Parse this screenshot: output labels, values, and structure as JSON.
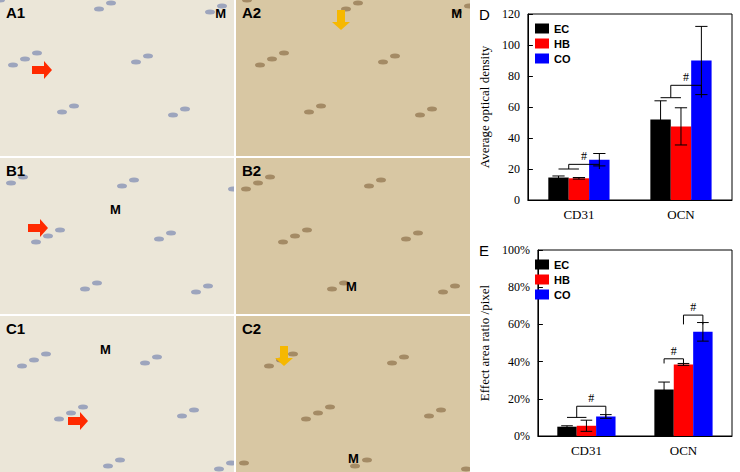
{
  "chart_data": [
    {
      "type": "bar",
      "title": "D",
      "y_label": "Average optical density",
      "categories": [
        "CD31",
        "OCN"
      ],
      "series": [
        {
          "name": "EC",
          "color": "#000000",
          "values": [
            14.5,
            52
          ],
          "errors": [
            1,
            12
          ]
        },
        {
          "name": "HB",
          "color": "#ff0000",
          "values": [
            14,
            47.5
          ],
          "errors": [
            0.5,
            12
          ]
        },
        {
          "name": "CO",
          "color": "#0000ff",
          "values": [
            26,
            90
          ],
          "errors": [
            4,
            22
          ]
        }
      ],
      "ylim": [
        0,
        120
      ],
      "yticks": [
        0,
        20,
        40,
        60,
        80,
        100,
        120
      ],
      "legend": "upper left",
      "grid": false,
      "annotations": [
        {
          "category": "CD31",
          "from": [
            "EC",
            "HB"
          ],
          "to": "CO",
          "y": 20,
          "y_top": 23,
          "label": "#"
        },
        {
          "category": "OCN",
          "from": [
            "EC",
            "HB"
          ],
          "to": "CO",
          "y": 66,
          "y_top": 74,
          "label": "#"
        }
      ]
    },
    {
      "type": "bar",
      "title": "E",
      "y_label": "Effect area ratio /pixel",
      "categories": [
        "CD31",
        "OCN"
      ],
      "series": [
        {
          "name": "EC",
          "color": "#000000",
          "values": [
            5,
            25
          ],
          "errors": [
            0.5,
            4
          ]
        },
        {
          "name": "HB",
          "color": "#ff0000",
          "values": [
            5.5,
            38.5
          ],
          "errors": [
            3,
            0.5
          ]
        },
        {
          "name": "CO",
          "color": "#0000ff",
          "values": [
            10.5,
            56
          ],
          "errors": [
            1,
            5
          ]
        }
      ],
      "ylim": [
        0,
        100
      ],
      "yticks": [
        {
          "value": 0,
          "label": "0%"
        },
        {
          "value": 20,
          "label": "20%"
        },
        {
          "value": 40,
          "label": "40%"
        },
        {
          "value": 60,
          "label": "60%"
        },
        {
          "value": 80,
          "label": "80%"
        },
        {
          "value": 100,
          "label": "100%"
        }
      ],
      "legend": "upper left",
      "grid": false,
      "annotations": [
        {
          "category": "CD31",
          "from": [
            "EC",
            "HB"
          ],
          "to": "CO",
          "y": 10,
          "y_top": 16,
          "label": "#"
        },
        {
          "category": "OCN",
          "from": [
            "EC"
          ],
          "to": "HB",
          "y": 39,
          "y_top": 41.5,
          "label": "#"
        },
        {
          "category": "OCN",
          "from": [
            "HB"
          ],
          "to": "CO",
          "y": 60,
          "y_top": 65,
          "label": "#"
        }
      ]
    }
  ],
  "image_panels": [
    {
      "label": "A1",
      "marks": [
        "M"
      ]
    },
    {
      "label": "A2",
      "marks": [
        "M"
      ]
    },
    {
      "label": "B1",
      "marks": [
        "M"
      ]
    },
    {
      "label": "B2",
      "marks": [
        "M"
      ]
    },
    {
      "label": "C1",
      "marks": [
        "M"
      ]
    },
    {
      "label": "C2",
      "marks": [
        "M"
      ]
    }
  ]
}
